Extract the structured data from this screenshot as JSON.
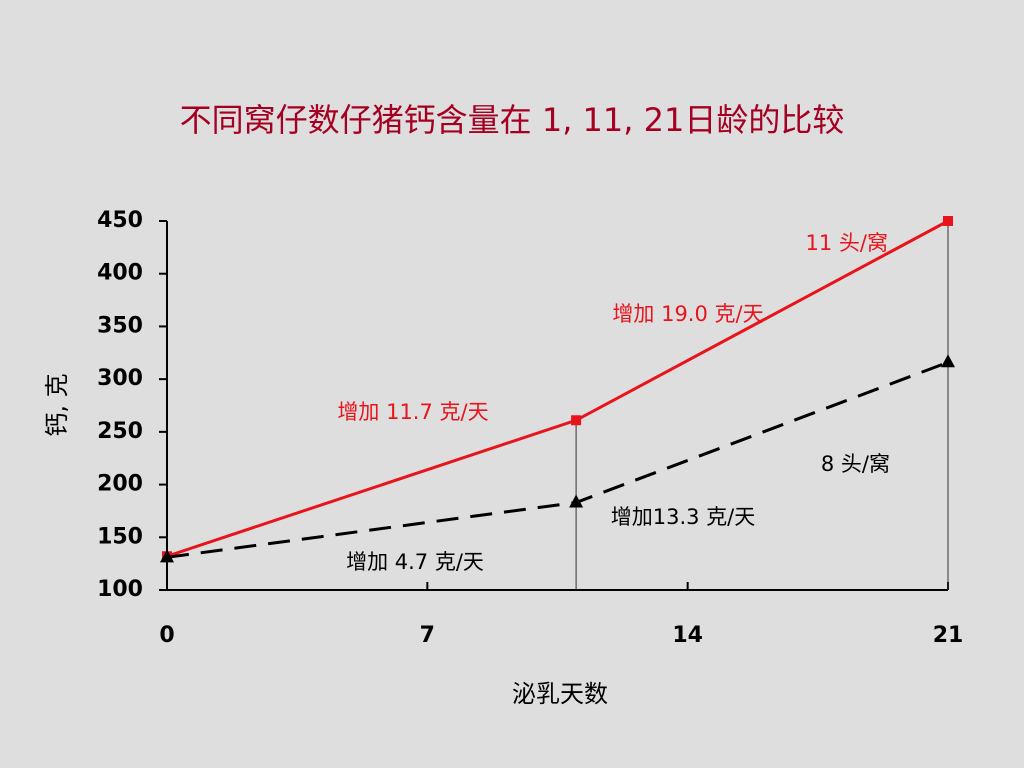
{
  "chart_data": {
    "type": "line",
    "title": "不同窝仔数仔猪钙含量在 1, 11, 21日龄的比较",
    "x_label": "泌乳天数",
    "y_label": "钙, 克",
    "x": [
      0,
      11,
      21
    ],
    "xlim": [
      0,
      21
    ],
    "xticks": [
      0,
      7,
      14,
      21
    ],
    "ylim": [
      100,
      450
    ],
    "yticks": [
      100,
      150,
      200,
      250,
      300,
      350,
      400,
      450
    ],
    "series": [
      {
        "name": "11 头/窝",
        "color": "#e8141c",
        "marker": "square",
        "dashed": false,
        "values": [
          132,
          261,
          450
        ]
      },
      {
        "name": "8 头/窝",
        "color": "#000000",
        "marker": "triangle",
        "dashed": true,
        "values": [
          131,
          183,
          316
        ]
      }
    ],
    "annotations": [
      {
        "text": "增加 11.7 克/天",
        "color": "#e8141c"
      },
      {
        "text": "增加 19.0 克/天",
        "color": "#e8141c"
      },
      {
        "text": "增加 4.7 克/天",
        "color": "#000000"
      },
      {
        "text": "增加13.3 克/天",
        "color": "#000000"
      }
    ]
  }
}
